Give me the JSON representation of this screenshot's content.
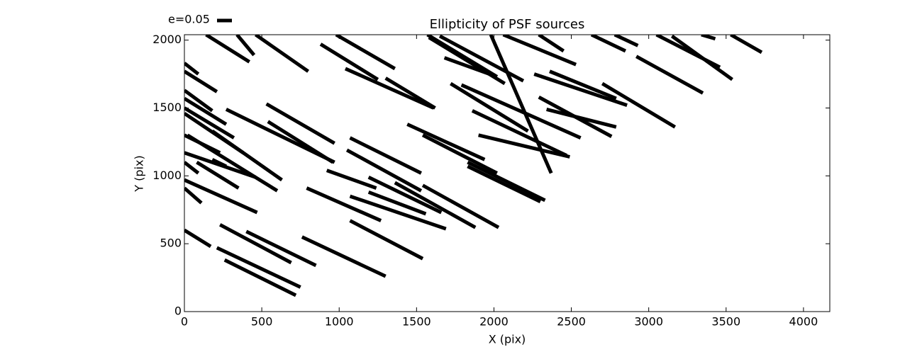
{
  "chart_data": {
    "type": "whisker",
    "title": "Ellipticity of PSF sources",
    "x_label": "X (pix)",
    "y_label": "Y (pix)",
    "legend_label": "e=0.05",
    "color": "#000000",
    "xlim": [
      0,
      4170
    ],
    "ylim": [
      0,
      2040
    ],
    "xticks": [
      0,
      500,
      1000,
      1500,
      2000,
      2500,
      3000,
      3500,
      4000
    ],
    "yticks": [
      0,
      500,
      1000,
      1500,
      2000
    ],
    "segments": [
      [
        140,
        2040,
        420,
        1840
      ],
      [
        340,
        2040,
        450,
        1890
      ],
      [
        460,
        2040,
        800,
        1770
      ],
      [
        980,
        2040,
        1360,
        1790
      ],
      [
        880,
        1970,
        1250,
        1710
      ],
      [
        1570,
        2040,
        2020,
        1730
      ],
      [
        1650,
        2030,
        2190,
        1700
      ],
      [
        1580,
        2020,
        2070,
        1680
      ],
      [
        1980,
        2040,
        2370,
        1020
      ],
      [
        2060,
        2040,
        2530,
        1820
      ],
      [
        2290,
        2040,
        2450,
        1920
      ],
      [
        2630,
        2040,
        2850,
        1920
      ],
      [
        2780,
        2040,
        2930,
        1960
      ],
      [
        3050,
        2040,
        3460,
        1800
      ],
      [
        3150,
        2030,
        3540,
        1710
      ],
      [
        3340,
        2040,
        3430,
        2010
      ],
      [
        3530,
        2040,
        3730,
        1910
      ],
      [
        2920,
        1880,
        3350,
        1610
      ],
      [
        0,
        1830,
        90,
        1750
      ],
      [
        0,
        1770,
        210,
        1620
      ],
      [
        1040,
        1790,
        1610,
        1500
      ],
      [
        1300,
        1720,
        1620,
        1500
      ],
      [
        1680,
        1870,
        2020,
        1730
      ],
      [
        2260,
        1750,
        2860,
        1520
      ],
      [
        2360,
        1770,
        2790,
        1570
      ],
      [
        2700,
        1680,
        3170,
        1360
      ],
      [
        0,
        1630,
        180,
        1480
      ],
      [
        0,
        1570,
        270,
        1380
      ],
      [
        0,
        1500,
        320,
        1280
      ],
      [
        270,
        1490,
        970,
        1100
      ],
      [
        530,
        1530,
        970,
        1240
      ],
      [
        1720,
        1680,
        2220,
        1330
      ],
      [
        1790,
        1670,
        2560,
        1280
      ],
      [
        2290,
        1580,
        2760,
        1290
      ],
      [
        2340,
        1490,
        2790,
        1360
      ],
      [
        1860,
        1480,
        2470,
        1150
      ],
      [
        1900,
        1300,
        2490,
        1140
      ],
      [
        1440,
        1380,
        1940,
        1120
      ],
      [
        1540,
        1300,
        2020,
        1020
      ],
      [
        0,
        1460,
        380,
        1170
      ],
      [
        540,
        1400,
        960,
        1100
      ],
      [
        0,
        1300,
        230,
        1170
      ],
      [
        20,
        1300,
        600,
        890
      ],
      [
        180,
        1330,
        630,
        970
      ],
      [
        0,
        1170,
        460,
        990
      ],
      [
        0,
        1100,
        90,
        1020
      ],
      [
        80,
        1100,
        350,
        910
      ],
      [
        180,
        1120,
        270,
        1070
      ],
      [
        1070,
        1280,
        1530,
        1020
      ],
      [
        1050,
        1190,
        1530,
        890
      ],
      [
        920,
        1040,
        1240,
        910
      ],
      [
        1190,
        990,
        1660,
        730
      ],
      [
        1360,
        950,
        1880,
        620
      ],
      [
        1540,
        930,
        2030,
        620
      ],
      [
        1830,
        1100,
        2330,
        820
      ],
      [
        1830,
        1070,
        2300,
        810
      ],
      [
        0,
        970,
        470,
        730
      ],
      [
        0,
        910,
        110,
        800
      ],
      [
        790,
        910,
        1270,
        670
      ],
      [
        1070,
        850,
        1690,
        610
      ],
      [
        1190,
        880,
        1560,
        720
      ],
      [
        1070,
        670,
        1540,
        390
      ],
      [
        0,
        600,
        170,
        480
      ],
      [
        230,
        640,
        690,
        360
      ],
      [
        400,
        590,
        850,
        340
      ],
      [
        760,
        550,
        1300,
        260
      ],
      [
        210,
        470,
        750,
        180
      ],
      [
        260,
        380,
        720,
        120
      ]
    ]
  }
}
